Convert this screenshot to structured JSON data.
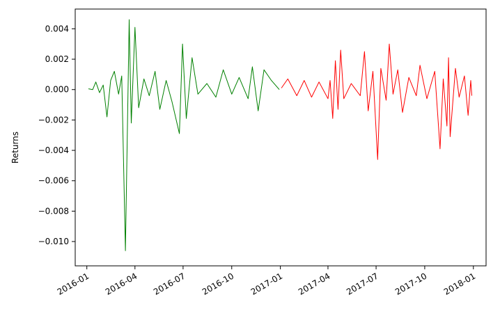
{
  "chart_data": {
    "type": "line",
    "title": "",
    "xlabel": "",
    "ylabel": "Returns",
    "x_ticks": [
      "2016-01",
      "2016-04",
      "2016-07",
      "2016-10",
      "2017-01",
      "2017-04",
      "2017-07",
      "2017-10",
      "2018-01"
    ],
    "y_ticks": [
      "0.004",
      "0.002",
      "0.000",
      "−0.002",
      "−0.004",
      "−0.006",
      "−0.008",
      "−0.010"
    ],
    "y_tick_values": [
      0.004,
      0.002,
      0.0,
      -0.002,
      -0.004,
      -0.006,
      -0.008,
      -0.01
    ],
    "xlim": [
      "2015-12-10",
      "2018-01-25"
    ],
    "ylim": [
      -0.0116,
      0.0053
    ],
    "grid": false,
    "legend": "none",
    "series": [
      {
        "color": "#008000",
        "points": [
          [
            "2016-01-04",
            5e-05
          ],
          [
            "2016-01-12",
            0.0
          ],
          [
            "2016-01-18",
            0.0005
          ],
          [
            "2016-01-25",
            -0.0002
          ],
          [
            "2016-02-01",
            0.0003
          ],
          [
            "2016-02-08",
            -0.0018
          ],
          [
            "2016-02-15",
            0.0006
          ],
          [
            "2016-02-22",
            0.0012
          ],
          [
            "2016-03-01",
            -0.0003
          ],
          [
            "2016-03-07",
            0.0009
          ],
          [
            "2016-03-14",
            -0.0106
          ],
          [
            "2016-03-21",
            0.0046
          ],
          [
            "2016-03-25",
            -0.0022
          ],
          [
            "2016-04-01",
            0.0041
          ],
          [
            "2016-04-08",
            -0.0012
          ],
          [
            "2016-04-18",
            0.0007
          ],
          [
            "2016-04-28",
            -0.0004
          ],
          [
            "2016-05-09",
            0.0012
          ],
          [
            "2016-05-18",
            -0.0013
          ],
          [
            "2016-05-30",
            0.0006
          ],
          [
            "2016-06-10",
            -0.0008
          ],
          [
            "2016-06-24",
            -0.0029
          ],
          [
            "2016-06-30",
            0.003
          ],
          [
            "2016-07-07",
            -0.0019
          ],
          [
            "2016-07-18",
            0.0021
          ],
          [
            "2016-07-29",
            -0.0003
          ],
          [
            "2016-08-15",
            0.0004
          ],
          [
            "2016-09-01",
            -0.0005
          ],
          [
            "2016-09-15",
            0.0013
          ],
          [
            "2016-10-01",
            -0.0003
          ],
          [
            "2016-10-15",
            0.0008
          ],
          [
            "2016-11-01",
            -0.0006
          ],
          [
            "2016-11-09",
            0.0015
          ],
          [
            "2016-11-20",
            -0.0014
          ],
          [
            "2016-12-01",
            0.0013
          ],
          [
            "2016-12-15",
            0.0006
          ],
          [
            "2016-12-30",
            0.0
          ]
        ]
      },
      {
        "color": "#ff0000",
        "points": [
          [
            "2017-01-03",
            0.0001
          ],
          [
            "2017-01-15",
            0.0007
          ],
          [
            "2017-02-01",
            -0.0004
          ],
          [
            "2017-02-15",
            0.0006
          ],
          [
            "2017-03-01",
            -0.0005
          ],
          [
            "2017-03-15",
            0.0005
          ],
          [
            "2017-04-01",
            -0.0006
          ],
          [
            "2017-04-05",
            0.0006
          ],
          [
            "2017-04-10",
            -0.0019
          ],
          [
            "2017-04-15",
            0.0019
          ],
          [
            "2017-04-20",
            -0.0013
          ],
          [
            "2017-04-25",
            0.0026
          ],
          [
            "2017-05-01",
            -0.0006
          ],
          [
            "2017-05-15",
            0.0004
          ],
          [
            "2017-06-01",
            -0.0004
          ],
          [
            "2017-06-09",
            0.0025
          ],
          [
            "2017-06-16",
            -0.0014
          ],
          [
            "2017-06-25",
            0.0012
          ],
          [
            "2017-07-04",
            -0.0046
          ],
          [
            "2017-07-10",
            0.0014
          ],
          [
            "2017-07-20",
            -0.0007
          ],
          [
            "2017-07-26",
            0.003
          ],
          [
            "2017-08-02",
            -0.0003
          ],
          [
            "2017-08-11",
            0.0013
          ],
          [
            "2017-08-20",
            -0.0015
          ],
          [
            "2017-09-01",
            0.0008
          ],
          [
            "2017-09-15",
            -0.0004
          ],
          [
            "2017-09-22",
            0.0016
          ],
          [
            "2017-10-05",
            -0.0006
          ],
          [
            "2017-10-20",
            0.0012
          ],
          [
            "2017-10-30",
            -0.0039
          ],
          [
            "2017-11-05",
            0.0007
          ],
          [
            "2017-11-12",
            -0.0024
          ],
          [
            "2017-11-15",
            0.0021
          ],
          [
            "2017-11-18",
            -0.0031
          ],
          [
            "2017-11-28",
            0.0014
          ],
          [
            "2017-12-05",
            -0.0005
          ],
          [
            "2017-12-15",
            0.0009
          ],
          [
            "2017-12-22",
            -0.0017
          ],
          [
            "2017-12-27",
            0.0006
          ],
          [
            "2017-12-29",
            -0.0004
          ]
        ]
      }
    ]
  }
}
